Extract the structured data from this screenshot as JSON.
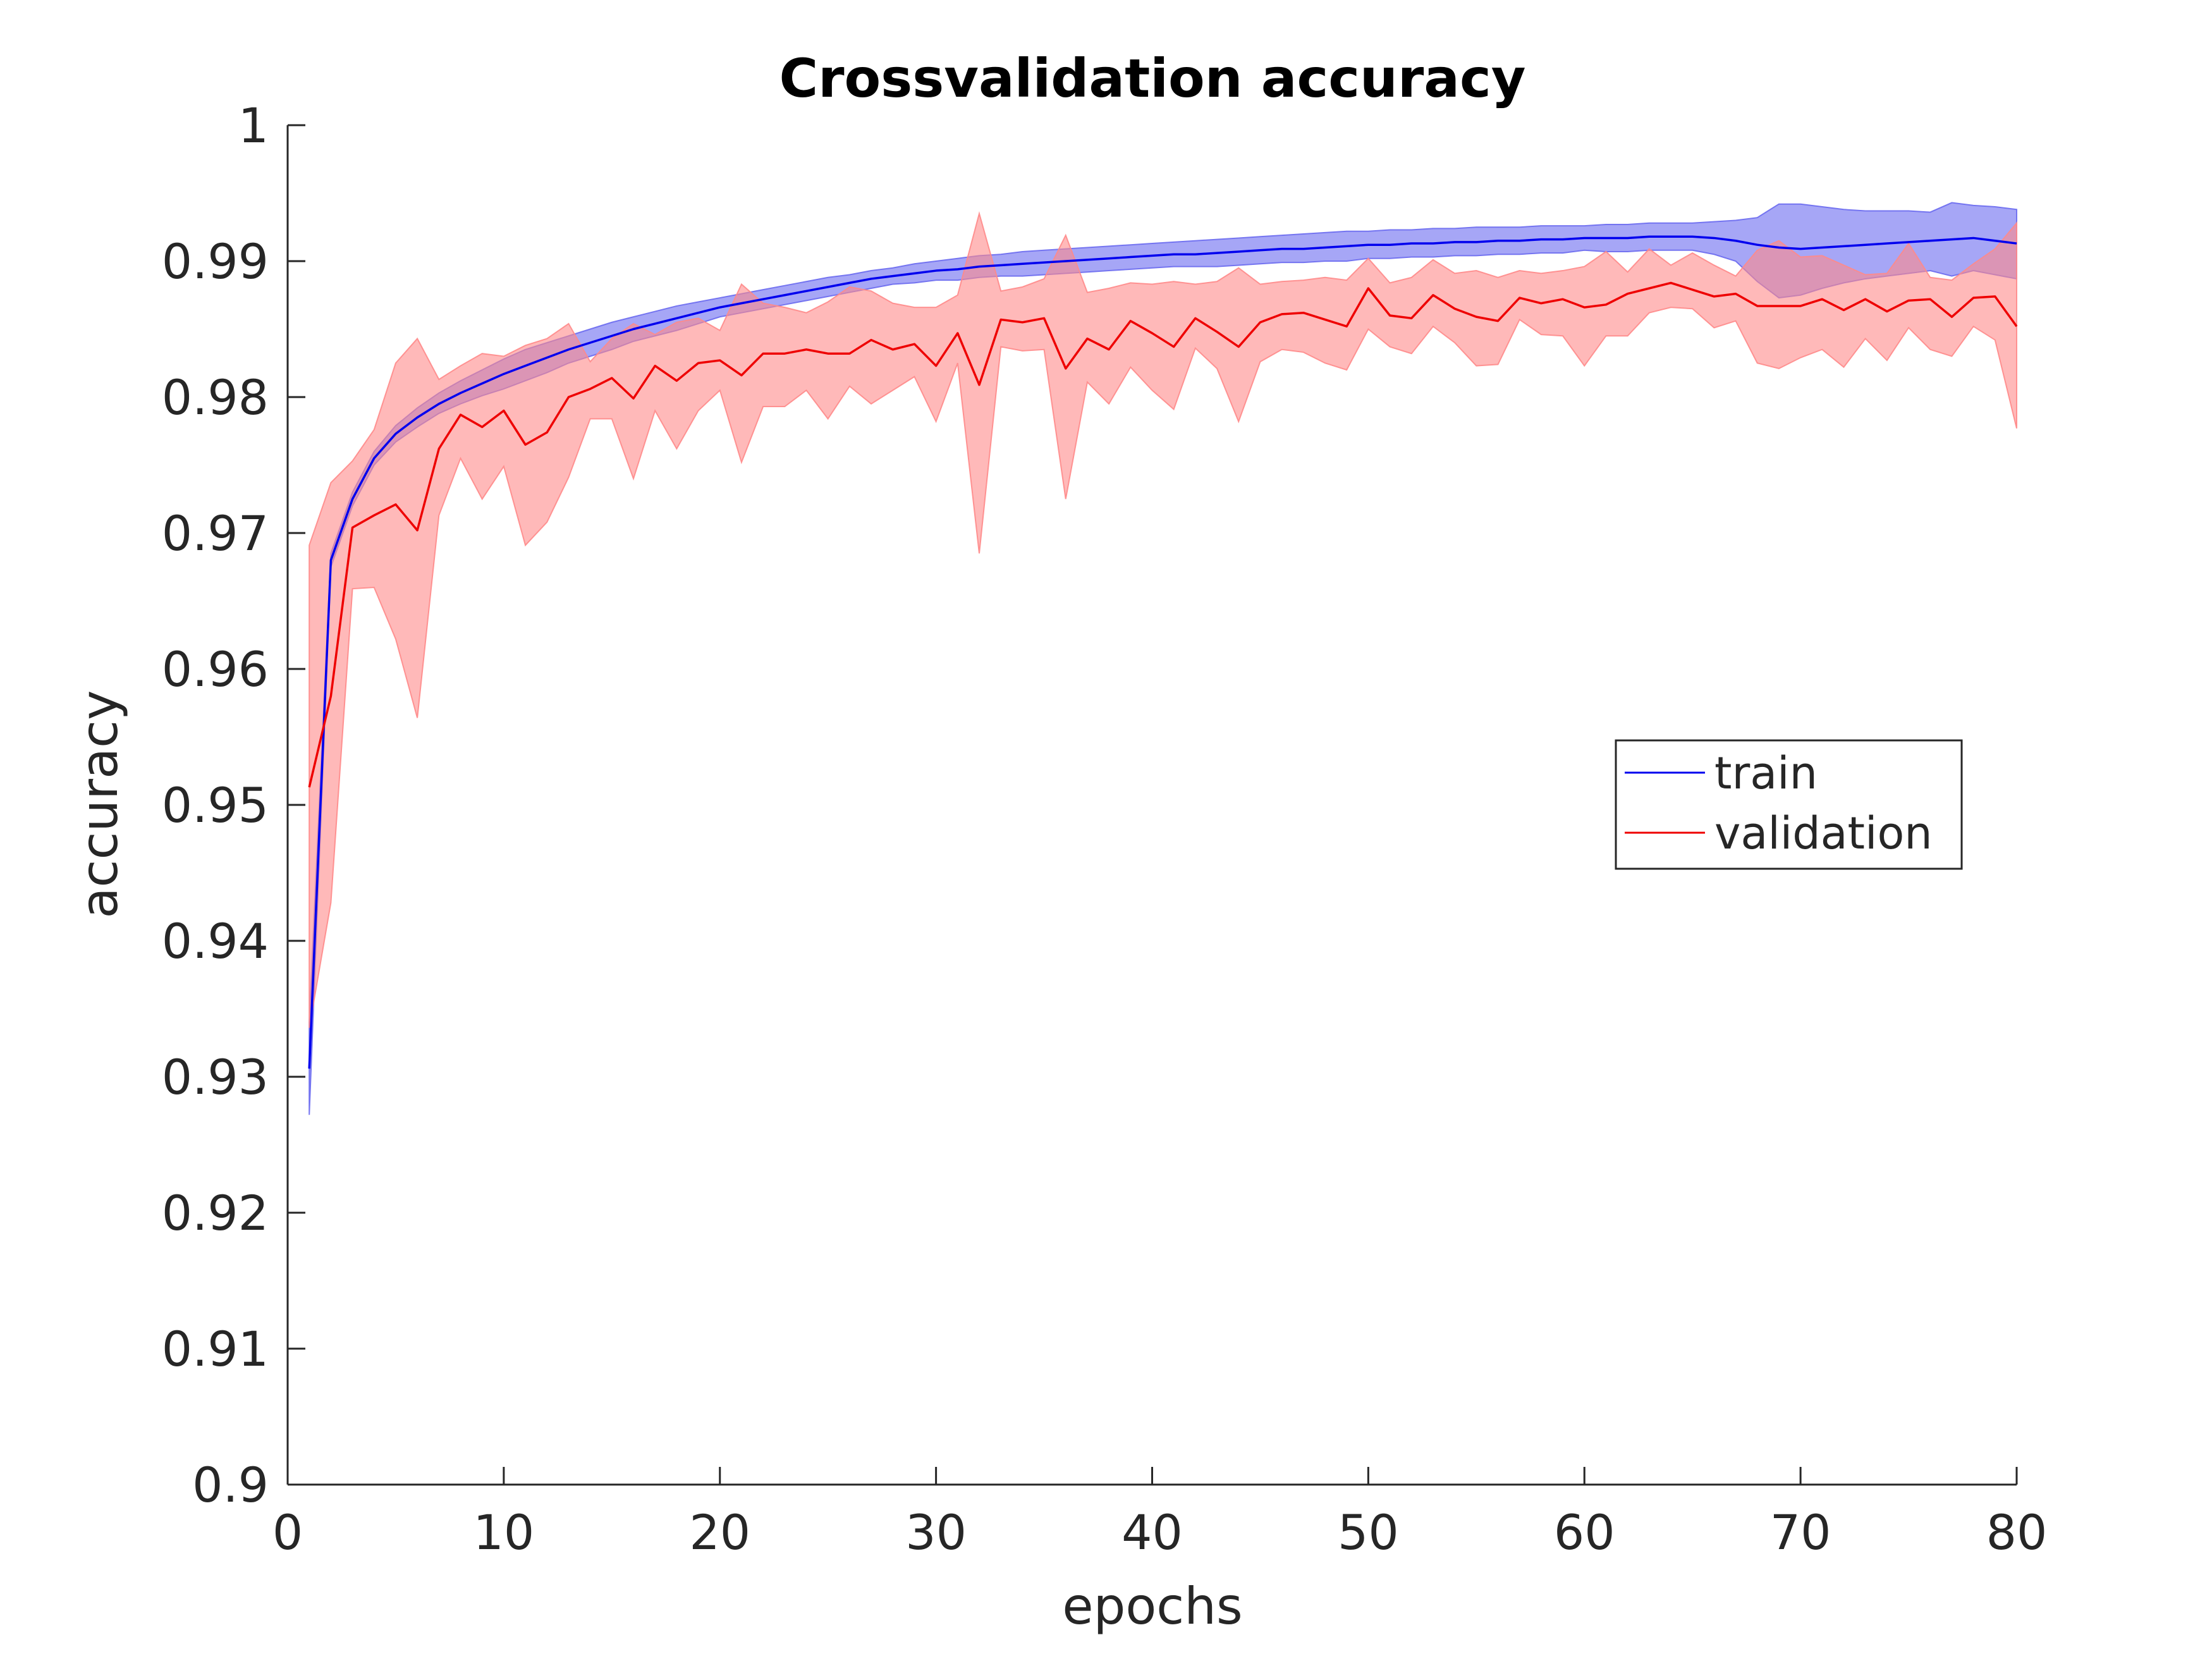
{
  "chart_data": {
    "type": "line",
    "title": "Crossvalidation accuracy",
    "xlabel": "epochs",
    "ylabel": "accuracy",
    "xlim": [
      0,
      80
    ],
    "ylim": [
      0.9,
      1.0
    ],
    "xticks": [
      0,
      10,
      20,
      30,
      40,
      50,
      60,
      70,
      80
    ],
    "xtick_labels": [
      "0",
      "10",
      "20",
      "30",
      "40",
      "50",
      "60",
      "70",
      "80"
    ],
    "yticks": [
      0.9,
      0.91,
      0.92,
      0.93,
      0.94,
      0.95,
      0.96,
      0.97,
      0.98,
      0.99,
      1.0
    ],
    "ytick_labels": [
      "0.9",
      "0.91",
      "0.92",
      "0.93",
      "0.94",
      "0.95",
      "0.96",
      "0.97",
      "0.98",
      "0.99",
      "1"
    ],
    "grid": false,
    "legend_position": "right-center",
    "series": [
      {
        "name": "train",
        "color": "#0000ee",
        "band_color": "#6a6af0",
        "x": [
          1,
          2,
          3,
          4,
          5,
          6,
          7,
          8,
          9,
          10,
          11,
          12,
          13,
          14,
          15,
          16,
          17,
          18,
          19,
          20,
          21,
          22,
          23,
          24,
          25,
          26,
          27,
          28,
          29,
          30,
          31,
          32,
          33,
          34,
          35,
          36,
          37,
          38,
          39,
          40,
          41,
          42,
          43,
          44,
          45,
          46,
          47,
          48,
          49,
          50,
          51,
          52,
          53,
          54,
          55,
          56,
          57,
          58,
          59,
          60,
          61,
          62,
          63,
          64,
          65,
          66,
          67,
          68,
          69,
          70,
          71,
          72,
          73,
          74,
          75,
          76,
          77,
          78,
          79,
          80
        ],
        "mean": [
          0.9306,
          0.968,
          0.9725,
          0.9755,
          0.9773,
          0.9785,
          0.9795,
          0.9803,
          0.981,
          0.9817,
          0.9823,
          0.9829,
          0.9835,
          0.984,
          0.9845,
          0.985,
          0.9854,
          0.9858,
          0.9862,
          0.9866,
          0.9869,
          0.9872,
          0.9875,
          0.9878,
          0.9881,
          0.9884,
          0.9887,
          0.9889,
          0.9891,
          0.9893,
          0.9894,
          0.9896,
          0.9897,
          0.9898,
          0.9899,
          0.99,
          0.9901,
          0.9902,
          0.9903,
          0.9904,
          0.9905,
          0.9905,
          0.9906,
          0.9907,
          0.9908,
          0.9909,
          0.9909,
          0.991,
          0.9911,
          0.9912,
          0.9912,
          0.9913,
          0.9913,
          0.9914,
          0.9914,
          0.9915,
          0.9915,
          0.9916,
          0.9916,
          0.9917,
          0.9917,
          0.9917,
          0.9918,
          0.9918,
          0.9918,
          0.9917,
          0.9915,
          0.9912,
          0.991,
          0.9909,
          0.991,
          0.9911,
          0.9912,
          0.9913,
          0.9914,
          0.9915,
          0.9916,
          0.9917,
          0.9915,
          0.9913
        ],
        "upper": [
          0.934,
          0.9685,
          0.973,
          0.976,
          0.9779,
          0.9792,
          0.9803,
          0.9812,
          0.982,
          0.9828,
          0.9835,
          0.984,
          0.9845,
          0.985,
          0.9855,
          0.9859,
          0.9863,
          0.9867,
          0.987,
          0.9873,
          0.9876,
          0.9879,
          0.9882,
          0.9885,
          0.9888,
          0.989,
          0.9893,
          0.9895,
          0.9898,
          0.99,
          0.9902,
          0.9904,
          0.9905,
          0.9907,
          0.9908,
          0.9909,
          0.991,
          0.9911,
          0.9912,
          0.9913,
          0.9914,
          0.9915,
          0.9916,
          0.9917,
          0.9918,
          0.9919,
          0.992,
          0.9921,
          0.9922,
          0.9922,
          0.9923,
          0.9923,
          0.9924,
          0.9924,
          0.9925,
          0.9925,
          0.9925,
          0.9926,
          0.9926,
          0.9926,
          0.9927,
          0.9927,
          0.9928,
          0.9928,
          0.9928,
          0.9929,
          0.993,
          0.9932,
          0.9942,
          0.9942,
          0.994,
          0.9938,
          0.9937,
          0.9937,
          0.9937,
          0.9936,
          0.9943,
          0.9941,
          0.994,
          0.9938
        ],
        "lower": [
          0.9272,
          0.9675,
          0.972,
          0.975,
          0.9767,
          0.9778,
          0.9788,
          0.9795,
          0.9801,
          0.9806,
          0.9812,
          0.9818,
          0.9825,
          0.983,
          0.9835,
          0.9841,
          0.9845,
          0.9849,
          0.9854,
          0.9859,
          0.9862,
          0.9865,
          0.9868,
          0.9871,
          0.9874,
          0.9877,
          0.988,
          0.9883,
          0.9884,
          0.9886,
          0.9886,
          0.9888,
          0.9889,
          0.9889,
          0.989,
          0.9891,
          0.9892,
          0.9893,
          0.9894,
          0.9895,
          0.9896,
          0.9896,
          0.9896,
          0.9897,
          0.9898,
          0.9899,
          0.9899,
          0.99,
          0.99,
          0.9902,
          0.9902,
          0.9903,
          0.9903,
          0.9904,
          0.9904,
          0.9905,
          0.9905,
          0.9906,
          0.9906,
          0.9908,
          0.9907,
          0.9907,
          0.9908,
          0.9908,
          0.9908,
          0.9905,
          0.99,
          0.9885,
          0.9873,
          0.9875,
          0.988,
          0.9884,
          0.9887,
          0.9889,
          0.9891,
          0.9893,
          0.9889,
          0.9893,
          0.989,
          0.9887
        ]
      },
      {
        "name": "validation",
        "color": "#ee0000",
        "band_color": "#ff8a8a",
        "x": [
          1,
          2,
          3,
          4,
          5,
          6,
          7,
          8,
          9,
          10,
          11,
          12,
          13,
          14,
          15,
          16,
          17,
          18,
          19,
          20,
          21,
          22,
          23,
          24,
          25,
          26,
          27,
          28,
          29,
          30,
          31,
          32,
          33,
          34,
          35,
          36,
          37,
          38,
          39,
          40,
          41,
          42,
          43,
          44,
          45,
          46,
          47,
          48,
          49,
          50,
          51,
          52,
          53,
          54,
          55,
          56,
          57,
          58,
          59,
          60,
          61,
          62,
          63,
          64,
          65,
          66,
          67,
          68,
          69,
          70,
          71,
          72,
          73,
          74,
          75,
          76,
          77,
          78,
          79,
          80
        ],
        "mean": [
          0.9513,
          0.958,
          0.9704,
          0.9713,
          0.9721,
          0.9702,
          0.9762,
          0.9787,
          0.9778,
          0.979,
          0.9765,
          0.9774,
          0.98,
          0.9806,
          0.9814,
          0.9799,
          0.9823,
          0.9812,
          0.9825,
          0.9827,
          0.9816,
          0.9832,
          0.9832,
          0.9835,
          0.9832,
          0.9832,
          0.9842,
          0.9835,
          0.9839,
          0.9823,
          0.9847,
          0.9809,
          0.9857,
          0.9855,
          0.9858,
          0.9821,
          0.9843,
          0.9835,
          0.9856,
          0.9847,
          0.9837,
          0.9858,
          0.9848,
          0.9837,
          0.9855,
          0.9861,
          0.9862,
          0.9857,
          0.9852,
          0.988,
          0.986,
          0.9858,
          0.9875,
          0.9865,
          0.9859,
          0.9856,
          0.9873,
          0.9869,
          0.9872,
          0.9866,
          0.9868,
          0.9876,
          0.988,
          0.9884,
          0.9879,
          0.9874,
          0.9876,
          0.9867,
          0.9867,
          0.9867,
          0.9872,
          0.9864,
          0.9872,
          0.9863,
          0.9871,
          0.9872,
          0.9859,
          0.9873,
          0.9874,
          0.9852
        ],
        "upper": [
          0.9691,
          0.9737,
          0.9753,
          0.9776,
          0.9825,
          0.9843,
          0.9813,
          0.9823,
          0.9832,
          0.983,
          0.9838,
          0.9843,
          0.9854,
          0.9826,
          0.9843,
          0.9854,
          0.9846,
          0.9855,
          0.9858,
          0.9849,
          0.9883,
          0.9869,
          0.9866,
          0.9862,
          0.987,
          0.9881,
          0.9878,
          0.9869,
          0.9866,
          0.9866,
          0.9875,
          0.9935,
          0.9878,
          0.9881,
          0.9887,
          0.9919,
          0.9877,
          0.988,
          0.9884,
          0.9883,
          0.9885,
          0.9883,
          0.9885,
          0.9895,
          0.9883,
          0.9885,
          0.9886,
          0.9888,
          0.9886,
          0.9902,
          0.9884,
          0.9888,
          0.9901,
          0.9891,
          0.9893,
          0.9888,
          0.9893,
          0.9891,
          0.9893,
          0.9896,
          0.9907,
          0.9892,
          0.9909,
          0.9897,
          0.9906,
          0.9897,
          0.9889,
          0.9908,
          0.9915,
          0.9903,
          0.9904,
          0.9897,
          0.989,
          0.9891,
          0.9913,
          0.9888,
          0.9886,
          0.9898,
          0.9909,
          0.9928
        ],
        "lower": [
          0.9336,
          0.9428,
          0.9659,
          0.966,
          0.9622,
          0.9564,
          0.9713,
          0.9755,
          0.9725,
          0.9749,
          0.9691,
          0.9708,
          0.9741,
          0.9784,
          0.9784,
          0.974,
          0.979,
          0.9762,
          0.979,
          0.9805,
          0.9752,
          0.9793,
          0.9793,
          0.9805,
          0.9784,
          0.9808,
          0.9795,
          0.9805,
          0.9815,
          0.9782,
          0.9825,
          0.9685,
          0.9837,
          0.9834,
          0.9835,
          0.9725,
          0.9811,
          0.9795,
          0.9822,
          0.9805,
          0.9791,
          0.9836,
          0.9821,
          0.9782,
          0.9826,
          0.9835,
          0.9833,
          0.9825,
          0.982,
          0.985,
          0.9837,
          0.9832,
          0.9852,
          0.984,
          0.9823,
          0.9824,
          0.9857,
          0.9846,
          0.9845,
          0.9823,
          0.9845,
          0.9845,
          0.9862,
          0.9866,
          0.9865,
          0.9851,
          0.9856,
          0.9825,
          0.9821,
          0.9829,
          0.9835,
          0.9822,
          0.9843,
          0.9827,
          0.9851,
          0.9835,
          0.983,
          0.9852,
          0.9842,
          0.9777
        ]
      }
    ]
  }
}
